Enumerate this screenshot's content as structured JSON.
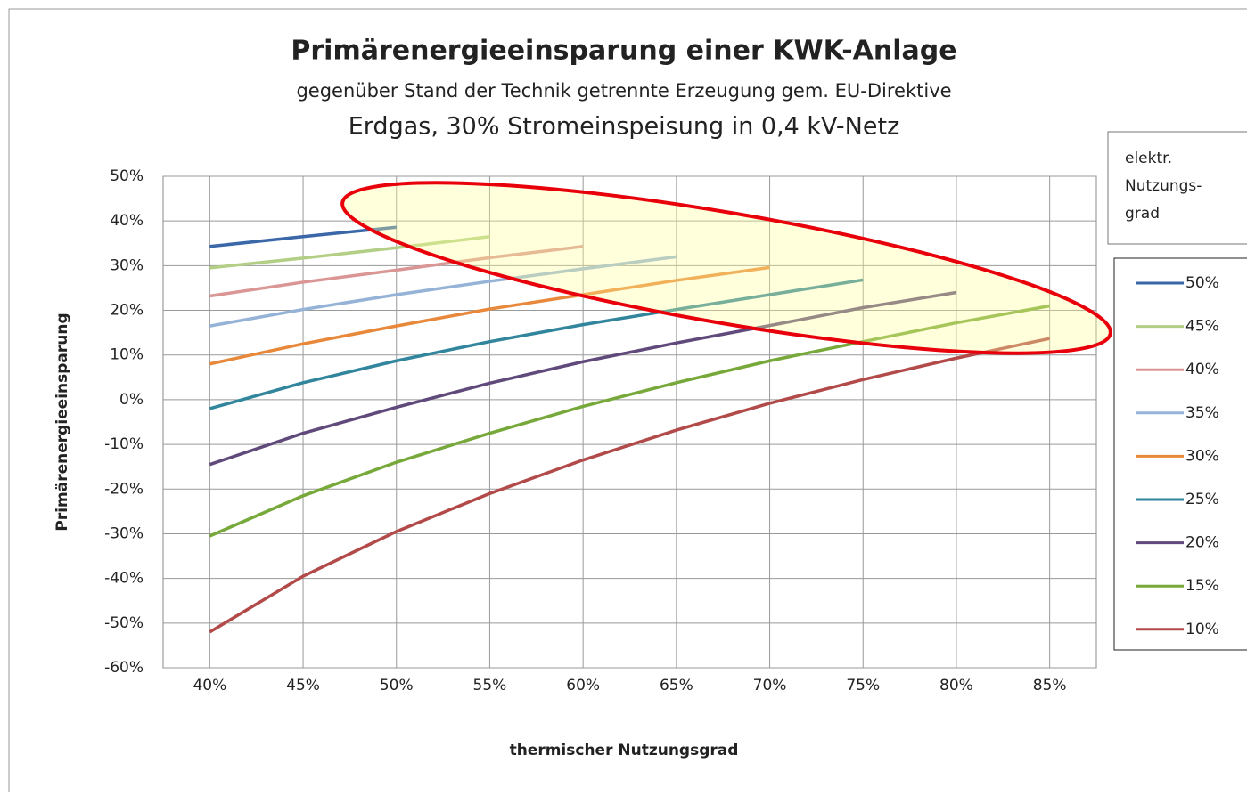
{
  "chart_data": {
    "type": "line",
    "title": "Primärenergieeinsparung einer KWK-Anlage",
    "subtitle": "gegenüber Stand der Technik getrennte Erzeugung gem. EU-Direktive",
    "subtitle2": "Erdgas, 30% Stromeinspeisung in 0,4 kV-Netz",
    "x_label": "thermischer Nutzungsgrad",
    "y_label": "Primärenergieeinsparung",
    "legend_title": [
      "elektr.",
      "Nutzungs-",
      "grad"
    ],
    "x": [
      40,
      45,
      50,
      55,
      60,
      65,
      70,
      75,
      80,
      85
    ],
    "xlim": [
      37.5,
      87.5
    ],
    "xticks": [
      {
        "value": 40,
        "label": "40%"
      },
      {
        "value": 45,
        "label": "45%"
      },
      {
        "value": 50,
        "label": "50%"
      },
      {
        "value": 55,
        "label": "55%"
      },
      {
        "value": 60,
        "label": "60%"
      },
      {
        "value": 65,
        "label": "65%"
      },
      {
        "value": 70,
        "label": "70%"
      },
      {
        "value": 75,
        "label": "75%"
      },
      {
        "value": 80,
        "label": "80%"
      },
      {
        "value": 85,
        "label": "85%"
      }
    ],
    "ylim": [
      -60,
      50
    ],
    "yticks": [
      {
        "value": -60,
        "label": "-60%"
      },
      {
        "value": -50,
        "label": "-50%"
      },
      {
        "value": -40,
        "label": "-40%"
      },
      {
        "value": -30,
        "label": "-30%"
      },
      {
        "value": -20,
        "label": "-20%"
      },
      {
        "value": -10,
        "label": "-10%"
      },
      {
        "value": 0,
        "label": "0%"
      },
      {
        "value": 10,
        "label": "10%"
      },
      {
        "value": 20,
        "label": "20%"
      },
      {
        "value": 30,
        "label": "30%"
      },
      {
        "value": 40,
        "label": "40%"
      },
      {
        "value": 50,
        "label": "50%"
      }
    ],
    "grid": true,
    "legend": "right",
    "series": [
      {
        "name": "50%",
        "color": "#3a67a8",
        "values": [
          34.3,
          36.5,
          38.6,
          null,
          null,
          null,
          null,
          null,
          null,
          null
        ]
      },
      {
        "name": "45%",
        "color": "#b3cf85",
        "values": [
          29.5,
          31.7,
          34,
          36.5,
          null,
          null,
          null,
          null,
          null,
          null
        ]
      },
      {
        "name": "40%",
        "color": "#d99694",
        "values": [
          23.2,
          26.3,
          29,
          31.8,
          34.3,
          null,
          null,
          null,
          null,
          null
        ]
      },
      {
        "name": "35%",
        "color": "#95b3d7",
        "values": [
          16.5,
          20.2,
          23.5,
          26.5,
          29.3,
          32,
          null,
          null,
          null,
          null
        ]
      },
      {
        "name": "30%",
        "color": "#e8883a",
        "values": [
          8,
          12.5,
          16.5,
          20.3,
          23.5,
          26.7,
          29.6,
          null,
          null,
          null
        ]
      },
      {
        "name": "25%",
        "color": "#31859c",
        "values": [
          -2,
          3.8,
          8.7,
          13,
          16.8,
          20.2,
          23.5,
          26.8,
          null,
          null
        ]
      },
      {
        "name": "20%",
        "color": "#604a7b",
        "values": [
          -14.5,
          -7.5,
          -1.7,
          3.7,
          8.5,
          12.7,
          16.6,
          20.6,
          24,
          null
        ]
      },
      {
        "name": "15%",
        "color": "#77a83a",
        "values": [
          -30.5,
          -21.5,
          -14,
          -7.5,
          -1.5,
          3.8,
          8.7,
          13,
          17.2,
          21
        ]
      },
      {
        "name": "10%",
        "color": "#b24a4a",
        "values": [
          -52,
          -39.5,
          -29.5,
          -21,
          -13.5,
          -6.8,
          -0.8,
          4.5,
          9.3,
          13.7
        ]
      }
    ]
  }
}
